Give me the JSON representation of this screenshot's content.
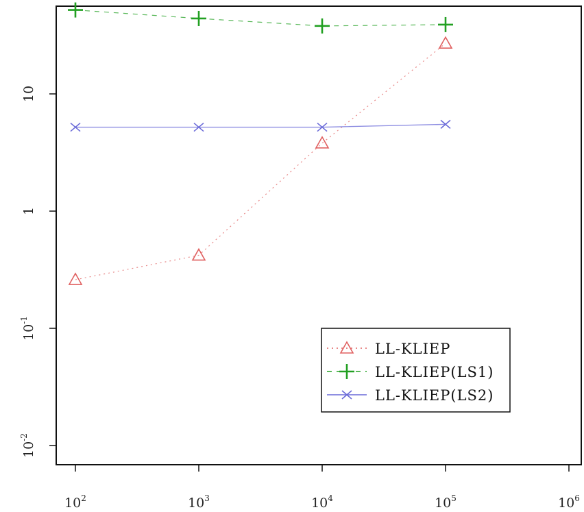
{
  "chart_data": {
    "type": "line",
    "x_scale": "log",
    "y_scale": "log",
    "xlim": [
      100,
      1000000
    ],
    "ylim": [
      0.01,
      100
    ],
    "x_ticks": [
      {
        "value": 100,
        "base": "10",
        "exp": "2"
      },
      {
        "value": 1000,
        "base": "10",
        "exp": "3"
      },
      {
        "value": 10000,
        "base": "10",
        "exp": "4"
      },
      {
        "value": 100000,
        "base": "10",
        "exp": "5"
      },
      {
        "value": 1000000,
        "base": "10",
        "exp": "6"
      }
    ],
    "y_ticks": [
      {
        "value": 0.01,
        "base": "10",
        "exp": "-2"
      },
      {
        "value": 0.1,
        "base": "10",
        "exp": "-1"
      },
      {
        "value": 1,
        "base": "1",
        "exp": ""
      },
      {
        "value": 10,
        "base": "10",
        "exp": ""
      }
    ],
    "grid": false,
    "legend_position": "lower-right",
    "series": [
      {
        "name": "LL-KLIEP",
        "color": "#e06060",
        "marker": "triangle",
        "line_style": "dotted",
        "x": [
          100,
          1000,
          10000,
          100000
        ],
        "y": [
          0.26,
          0.42,
          3.8,
          27
        ]
      },
      {
        "name": "LL-KLIEP(LS1)",
        "color": "#22a022",
        "marker": "plus",
        "line_style": "dashed",
        "x": [
          100,
          1000,
          10000,
          100000
        ],
        "y": [
          52,
          44,
          38,
          39
        ]
      },
      {
        "name": "LL-KLIEP(LS2)",
        "color": "#6a6ad8",
        "marker": "cross",
        "line_style": "solid",
        "x": [
          100,
          1000,
          10000,
          100000
        ],
        "y": [
          5.2,
          5.2,
          5.2,
          5.5
        ]
      }
    ]
  }
}
